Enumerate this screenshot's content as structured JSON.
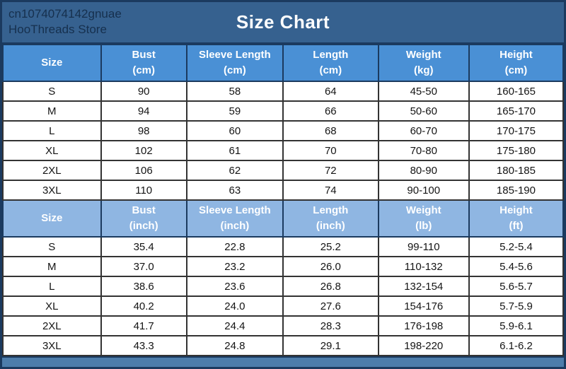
{
  "banner": {
    "store_line1": "cn1074074142gnuae",
    "store_line2": "HooThreads Store",
    "title": "Size Chart"
  },
  "colors": {
    "banner_bg": "#36618f",
    "banner_text": "#16304e",
    "metric_header_bg": "#4a90d5",
    "imperial_header_bg": "#8fb6e2",
    "grid_border": "#1b3a5f",
    "header_text": "#ffffff"
  },
  "chart_data": [
    {
      "type": "table",
      "header_bg": "#4a90d5",
      "columns": [
        {
          "label": "Size",
          "unit": ""
        },
        {
          "label": "Bust",
          "unit": "(cm)"
        },
        {
          "label": "Sleeve Length",
          "unit": "(cm)"
        },
        {
          "label": "Length",
          "unit": "(cm)"
        },
        {
          "label": "Weight",
          "unit": "(kg)"
        },
        {
          "label": "Height",
          "unit": "(cm)"
        }
      ],
      "rows": [
        [
          "S",
          "90",
          "58",
          "64",
          "45-50",
          "160-165"
        ],
        [
          "M",
          "94",
          "59",
          "66",
          "50-60",
          "165-170"
        ],
        [
          "L",
          "98",
          "60",
          "68",
          "60-70",
          "170-175"
        ],
        [
          "XL",
          "102",
          "61",
          "70",
          "70-80",
          "175-180"
        ],
        [
          "2XL",
          "106",
          "62",
          "72",
          "80-90",
          "180-185"
        ],
        [
          "3XL",
          "110",
          "63",
          "74",
          "90-100",
          "185-190"
        ]
      ]
    },
    {
      "type": "table",
      "header_bg": "#8fb6e2",
      "columns": [
        {
          "label": "Size",
          "unit": ""
        },
        {
          "label": "Bust",
          "unit": "(inch)"
        },
        {
          "label": "Sleeve Length",
          "unit": "(inch)"
        },
        {
          "label": "Length",
          "unit": "(inch)"
        },
        {
          "label": "Weight",
          "unit": "(lb)"
        },
        {
          "label": "Height",
          "unit": "(ft)"
        }
      ],
      "rows": [
        [
          "S",
          "35.4",
          "22.8",
          "25.2",
          "99-110",
          "5.2-5.4"
        ],
        [
          "M",
          "37.0",
          "23.2",
          "26.0",
          "110-132",
          "5.4-5.6"
        ],
        [
          "L",
          "38.6",
          "23.6",
          "26.8",
          "132-154",
          "5.6-5.7"
        ],
        [
          "XL",
          "40.2",
          "24.0",
          "27.6",
          "154-176",
          "5.7-5.9"
        ],
        [
          "2XL",
          "41.7",
          "24.4",
          "28.3",
          "176-198",
          "5.9-6.1"
        ],
        [
          "3XL",
          "43.3",
          "24.8",
          "29.1",
          "198-220",
          "6.1-6.2"
        ]
      ]
    }
  ]
}
